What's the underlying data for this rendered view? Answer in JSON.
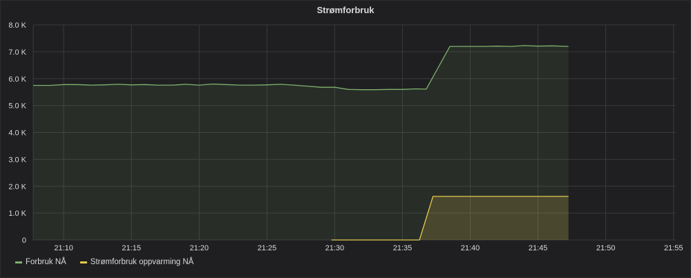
{
  "panel": {
    "title": "Strømforbruk"
  },
  "colors": {
    "forbruk": "#7eb26d",
    "oppvarming": "#e5c94f",
    "grid": "#3a3a3d"
  },
  "chart_data": {
    "type": "area",
    "title": "Strømforbruk",
    "x_ticks": [
      "21:10",
      "21:15",
      "21:20",
      "21:25",
      "21:30",
      "21:35",
      "21:40",
      "21:45",
      "21:50",
      "21:55"
    ],
    "y_ticks": [
      "0",
      "1.0 K",
      "2.0 K",
      "3.0 K",
      "4.0 K",
      "5.0 K",
      "6.0 K",
      "7.0 K",
      "8.0 K"
    ],
    "ylim": [
      0,
      8000
    ],
    "xlim": [
      "21:07:45",
      "21:55:10"
    ],
    "grid": true,
    "legend_position": "bottom-left",
    "series": [
      {
        "name": "Forbruk NÅ",
        "color": "#7eb26d",
        "x": [
          "21:07:45",
          "21:09:00",
          "21:10:00",
          "21:11:00",
          "21:12:00",
          "21:13:00",
          "21:14:00",
          "21:15:00",
          "21:16:00",
          "21:17:00",
          "21:18:00",
          "21:19:00",
          "21:20:00",
          "21:21:00",
          "21:22:00",
          "21:23:00",
          "21:24:00",
          "21:25:00",
          "21:26:00",
          "21:27:00",
          "21:28:00",
          "21:29:00",
          "21:30:00",
          "21:31:00",
          "21:32:00",
          "21:33:00",
          "21:34:00",
          "21:35:00",
          "21:36:00",
          "21:36:45",
          "21:38:30",
          "21:39:00",
          "21:40:00",
          "21:41:00",
          "21:42:00",
          "21:43:00",
          "21:44:00",
          "21:45:00",
          "21:46:00",
          "21:47:15"
        ],
        "values": [
          5750,
          5750,
          5780,
          5780,
          5760,
          5770,
          5790,
          5770,
          5780,
          5760,
          5760,
          5790,
          5760,
          5800,
          5780,
          5760,
          5760,
          5770,
          5790,
          5760,
          5720,
          5680,
          5680,
          5600,
          5590,
          5590,
          5600,
          5600,
          5620,
          5610,
          7200,
          7200,
          7200,
          7200,
          7210,
          7200,
          7230,
          7210,
          7220,
          7200
        ]
      },
      {
        "name": "Strømforbruk oppvarming NÅ",
        "color": "#e5c94f",
        "x": [
          "21:29:45",
          "21:36:15",
          "21:37:15",
          "21:47:15"
        ],
        "values": [
          0,
          0,
          1620,
          1620
        ]
      }
    ]
  }
}
